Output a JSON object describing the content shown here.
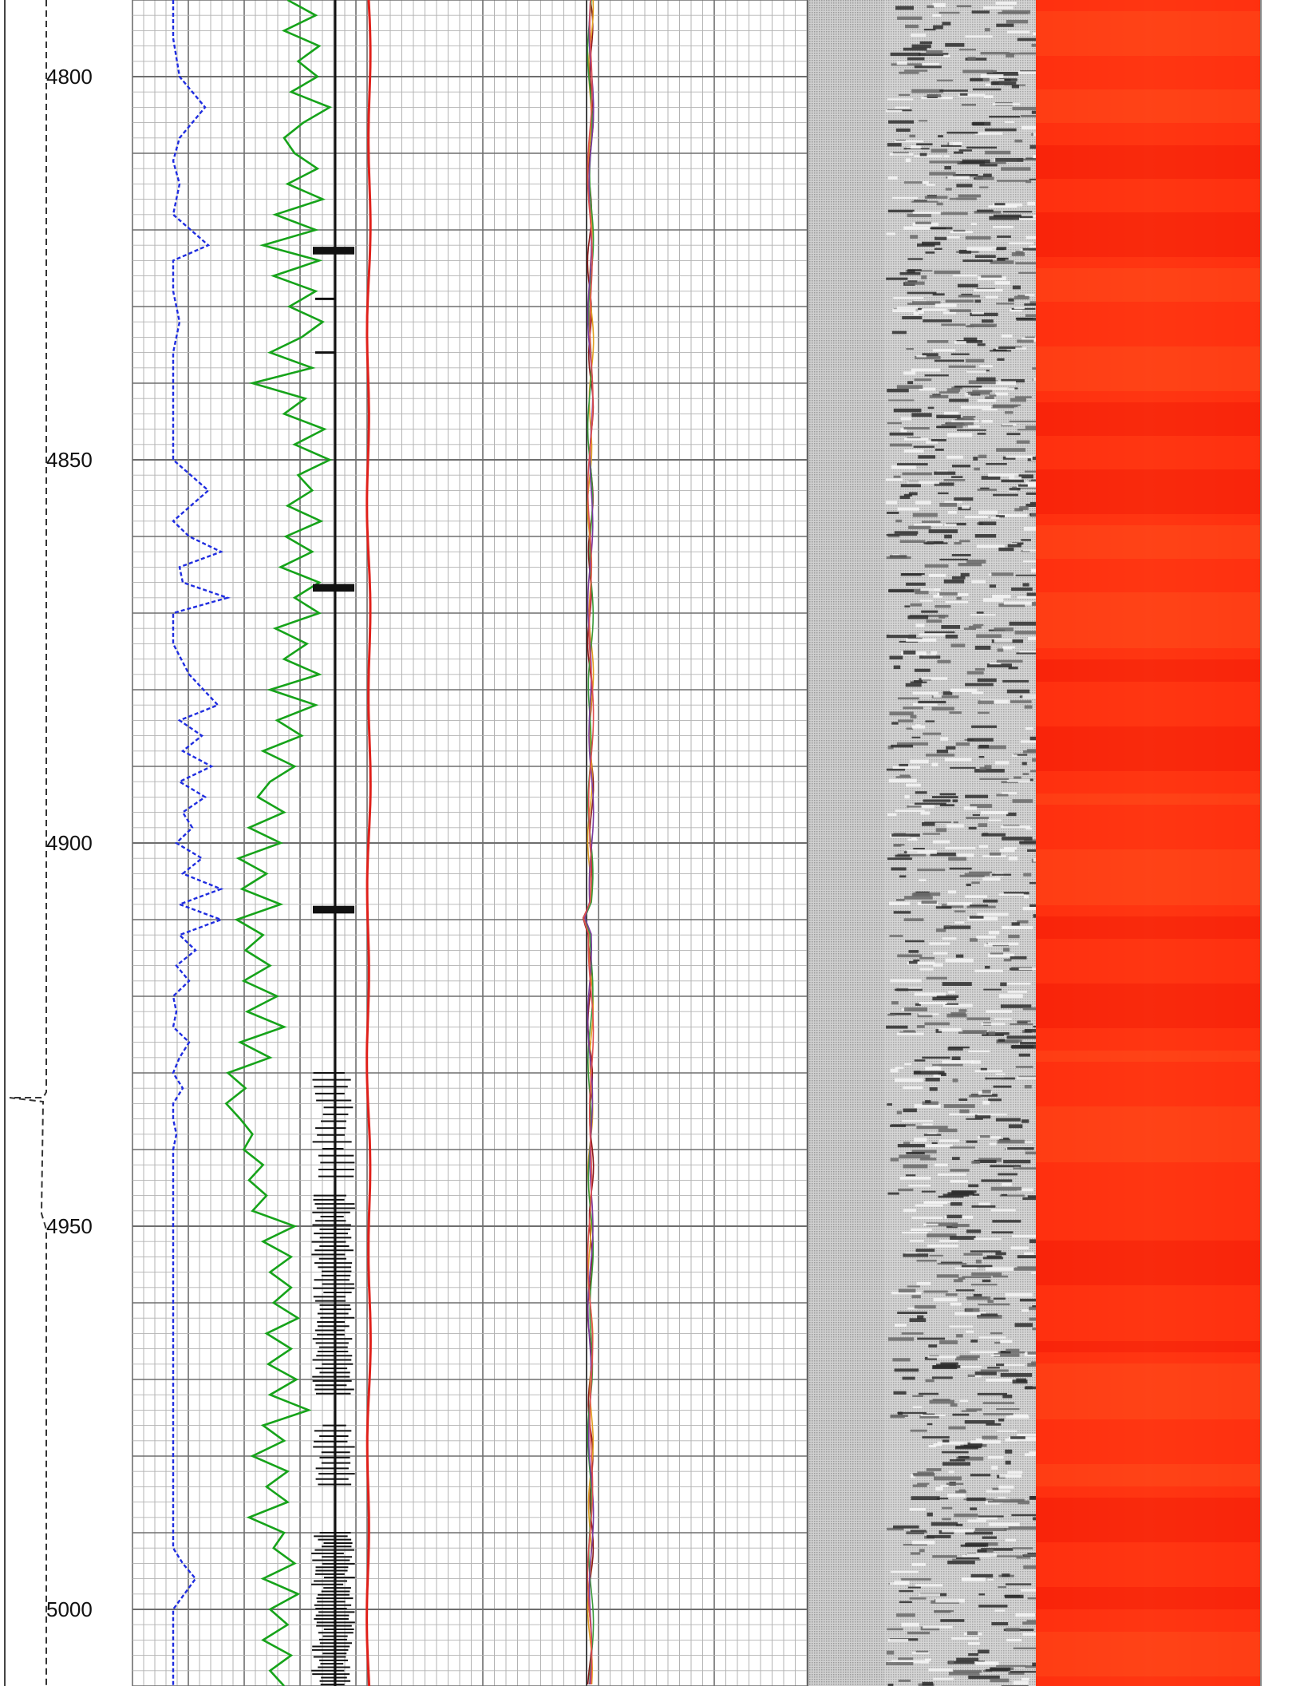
{
  "chart_data": {
    "type": "line",
    "y_axis": {
      "ylim": [
        4790,
        5010
      ],
      "ticks": [
        4800,
        4850,
        4900,
        4950,
        5000
      ]
    },
    "colors": {
      "blue_curve": "#1f2de0",
      "green_curve": "#16a31a",
      "red_curve": "#e0201a",
      "track2_curves": [
        "#8b1a1a",
        "#e0a020",
        "#3a9a3a",
        "#7a3aa0",
        "#e05050"
      ],
      "heatmap": "#ff2a0a",
      "grid_major": "#6e6e6e",
      "grid_minor": "#b3b3b3"
    },
    "series": [
      {
        "values_depth": [
          4790,
          4795,
          4800,
          4804,
          4808,
          4811,
          4814,
          4818,
          4822,
          4824,
          4826,
          4828,
          4832,
          4836,
          4838,
          4842,
          4846,
          4850,
          4854,
          4858,
          4860,
          4862,
          4864,
          4866,
          4868,
          4870,
          4872,
          4874,
          4878,
          4882,
          4884,
          4886,
          4888,
          4890,
          4892,
          4894,
          4896,
          4898,
          4900,
          4902,
          4904,
          4906,
          4908,
          4910,
          4912,
          4914,
          4916,
          4918,
          4920,
          4922,
          4924,
          4926,
          4928,
          4930,
          4932,
          4934,
          4936,
          4938,
          4940,
          4944,
          4948,
          4952,
          4956,
          4960,
          4964,
          4968,
          4972,
          4976,
          4980,
          4984,
          4988,
          4992,
          4994,
          4996,
          5000,
          5004,
          5008,
          5010
        ],
        "values": [
          0.3,
          0.3,
          0.5,
          1.3,
          0.5,
          0.3,
          0.5,
          0.3,
          1.4,
          0.3,
          0.3,
          0.3,
          0.5,
          0.3,
          0.3,
          0.3,
          0.3,
          0.3,
          1.4,
          0.3,
          0.8,
          1.8,
          0.5,
          0.6,
          2.0,
          0.3,
          0.3,
          0.3,
          0.8,
          1.7,
          0.5,
          1.2,
          0.6,
          1.5,
          0.5,
          1.3,
          0.6,
          0.9,
          0.4,
          1.2,
          0.6,
          1.8,
          0.5,
          1.8,
          0.5,
          1.0,
          0.4,
          0.8,
          0.3,
          0.4,
          0.3,
          0.8,
          0.5,
          0.3,
          0.6,
          0.3,
          0.3,
          0.4,
          0.3,
          0.3,
          0.3,
          0.3,
          0.3,
          0.3,
          0.3,
          0.3,
          0.3,
          0.3,
          0.3,
          0.3,
          0.3,
          0.3,
          0.6,
          1.0,
          0.3,
          0.3,
          0.3,
          0.3
        ]
      },
      {
        "values_depth": [
          4790,
          4792,
          4794,
          4796,
          4798,
          4800,
          4802,
          4804,
          4806,
          4808,
          4810,
          4812,
          4814,
          4816,
          4818,
          4820,
          4822,
          4824,
          4826,
          4828,
          4830,
          4832,
          4834,
          4836,
          4838,
          4840,
          4842,
          4844,
          4846,
          4848,
          4850,
          4852,
          4854,
          4856,
          4858,
          4860,
          4862,
          4864,
          4866,
          4868,
          4870,
          4872,
          4874,
          4876,
          4878,
          4880,
          4882,
          4884,
          4886,
          4888,
          4890,
          4892,
          4894,
          4896,
          4898,
          4900,
          4902,
          4904,
          4906,
          4908,
          4910,
          4912,
          4914,
          4916,
          4918,
          4920,
          4922,
          4924,
          4926,
          4928,
          4930,
          4932,
          4934,
          4936,
          4938,
          4940,
          4942,
          4944,
          4946,
          4948,
          4950,
          4952,
          4954,
          4956,
          4958,
          4960,
          4962,
          4964,
          4966,
          4968,
          4970,
          4972,
          4974,
          4976,
          4978,
          4980,
          4982,
          4984,
          4986,
          4988,
          4990,
          4992,
          4994,
          4996,
          4998,
          5000,
          5002,
          5004,
          5006,
          5008,
          5010
        ],
        "values": [
          3.2,
          4.8,
          3.0,
          5.0,
          3.8,
          4.9,
          3.4,
          5.6,
          4.1,
          3.0,
          3.6,
          4.9,
          3.2,
          5.2,
          2.5,
          4.8,
          1.8,
          5.0,
          2.4,
          4.8,
          3.3,
          5.2,
          4.0,
          2.2,
          4.6,
          1.2,
          4.2,
          3.0,
          5.3,
          3.6,
          5.6,
          3.8,
          4.6,
          3.2,
          5.1,
          3.1,
          4.6,
          2.8,
          5.0,
          3.6,
          5.0,
          2.5,
          4.3,
          3.0,
          5.0,
          2.2,
          4.8,
          2.6,
          4.0,
          1.8,
          3.6,
          2.2,
          1.5,
          3.0,
          1.0,
          2.8,
          0.4,
          2.0,
          0.6,
          2.8,
          0.3,
          1.8,
          0.8,
          2.2,
          0.7,
          2.6,
          0.9,
          3.0,
          0.5,
          2.2,
          -0.2,
          0.8,
          -0.3,
          0.5,
          1.2,
          0.7,
          1.8,
          1.0,
          2.0,
          1.2,
          3.6,
          1.8,
          3.4,
          2.2,
          3.4,
          2.4,
          3.8,
          2.0,
          3.4,
          2.1,
          3.7,
          2.2,
          4.4,
          1.8,
          3.0,
          1.2,
          3.2,
          2.0,
          3.2,
          1.0,
          3.0,
          2.4,
          3.6,
          1.8,
          3.8,
          2.2,
          3.2,
          1.8,
          3.4,
          2.2,
          3.0
        ]
      }
    ]
  }
}
